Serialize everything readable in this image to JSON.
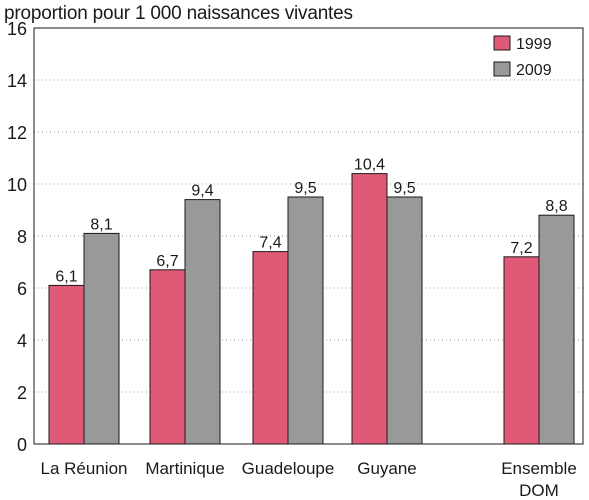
{
  "chart_data": {
    "type": "bar",
    "title": "proportion pour 1 000 naissances vivantes",
    "xlabel": "",
    "ylabel": "",
    "ylim": [
      0,
      16
    ],
    "yticks": [
      0,
      2,
      4,
      6,
      8,
      10,
      12,
      14,
      16
    ],
    "grid": true,
    "legend_position": "top-right",
    "categories": [
      [
        "La Réunion"
      ],
      [
        "Martinique"
      ],
      [
        "Guadeloupe"
      ],
      [
        "Guyane"
      ],
      [
        "Ensemble",
        "DOM"
      ]
    ],
    "series": [
      {
        "name": "1999",
        "color": "#e05a78",
        "values": [
          6.1,
          6.7,
          7.4,
          10.4,
          7.2
        ],
        "labels": [
          "6,1",
          "6,7",
          "7,4",
          "10,4",
          "7,2"
        ]
      },
      {
        "name": "2009",
        "color": "#999999",
        "values": [
          8.1,
          9.4,
          9.5,
          9.5,
          8.8
        ],
        "labels": [
          "8,1",
          "9,4",
          "9,5",
          "9,5",
          "8,8"
        ]
      }
    ]
  }
}
